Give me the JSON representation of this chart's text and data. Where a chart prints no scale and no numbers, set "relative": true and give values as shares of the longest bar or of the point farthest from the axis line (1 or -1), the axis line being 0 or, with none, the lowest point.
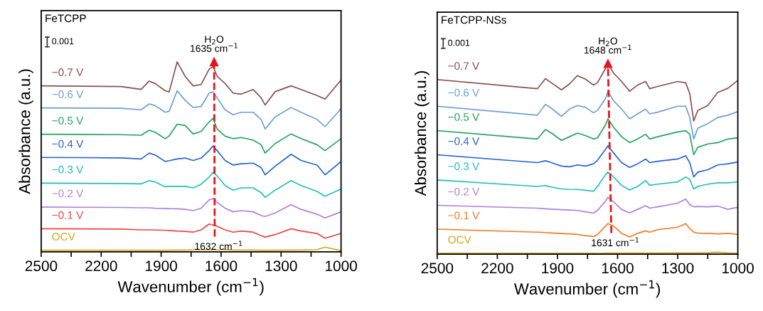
{
  "chart_data": [
    {
      "type": "line",
      "title": "FeTCPP",
      "xlabel": "Wavenumber (cm$^{−1}$)",
      "ylabel": "Absorbance (a.u.)",
      "relative": true,
      "tick_labels": "x",
      "legend": false,
      "grid": false,
      "marker": "none",
      "line_style": "solid",
      "xlim": [
        2500,
        1000
      ],
      "xticks": [
        2500,
        {
          "value": 2350,
          "label": null
        },
        2200,
        {
          "value": 2050,
          "label": null
        },
        1900,
        {
          "value": 1750,
          "label": null
        },
        1600,
        {
          "value": 1450,
          "label": null
        },
        1300,
        {
          "value": 1150,
          "label": null
        },
        1000
      ],
      "annotations": [
        "0.001",
        "H$_{2}$O\n1635 cm$^{−1}$",
        "1632 cm$^{−1}$"
      ],
      "x": [
        2500,
        2300,
        2100,
        2000,
        1960,
        1930,
        1880,
        1860,
        1820,
        1780,
        1740,
        1700,
        1660,
        1640,
        1620,
        1580,
        1540,
        1500,
        1440,
        1400,
        1380,
        1330,
        1250,
        1200,
        1120,
        1080,
        1000
      ],
      "series": [
        {
          "name": "−0.7 V",
          "color": "#8b4e52",
          "values": [
            0.874,
            0.872,
            0.87,
            0.855,
            0.899,
            0.886,
            0.848,
            0.842,
            1.0,
            0.924,
            0.874,
            0.881,
            0.962,
            0.975,
            0.924,
            0.886,
            0.836,
            0.83,
            0.855,
            0.811,
            0.773,
            0.843,
            0.874,
            0.855,
            0.823,
            0.804,
            0.905
          ]
        },
        {
          "name": "−0.6 V",
          "color": "#6b9fd6",
          "values": [
            0.758,
            0.757,
            0.756,
            0.748,
            0.779,
            0.77,
            0.735,
            0.74,
            0.848,
            0.798,
            0.76,
            0.765,
            0.836,
            0.842,
            0.811,
            0.748,
            0.722,
            0.735,
            0.735,
            0.697,
            0.647,
            0.71,
            0.76,
            0.735,
            0.697,
            0.659,
            0.754
          ]
        },
        {
          "name": "−0.5 V",
          "color": "#22a45c",
          "values": [
            0.619,
            0.618,
            0.617,
            0.614,
            0.64,
            0.63,
            0.596,
            0.61,
            0.672,
            0.665,
            0.621,
            0.634,
            0.684,
            0.703,
            0.646,
            0.609,
            0.596,
            0.602,
            0.589,
            0.564,
            0.52,
            0.57,
            0.621,
            0.596,
            0.564,
            0.533,
            0.596
          ]
        },
        {
          "name": "−0.4 V",
          "color": "#2464d4",
          "values": [
            0.497,
            0.496,
            0.495,
            0.489,
            0.52,
            0.51,
            0.476,
            0.48,
            0.489,
            0.494,
            0.481,
            0.494,
            0.533,
            0.558,
            0.533,
            0.481,
            0.457,
            0.464,
            0.467,
            0.444,
            0.406,
            0.451,
            0.514,
            0.481,
            0.457,
            0.406,
            0.476
          ]
        },
        {
          "name": "−0.3 V",
          "color": "#1fbfbf",
          "values": [
            0.362,
            0.361,
            0.36,
            0.358,
            0.375,
            0.368,
            0.343,
            0.345,
            0.345,
            0.345,
            0.337,
            0.356,
            0.394,
            0.419,
            0.4,
            0.349,
            0.325,
            0.337,
            0.337,
            0.312,
            0.287,
            0.325,
            0.375,
            0.349,
            0.318,
            0.293,
            0.331
          ]
        },
        {
          "name": "−0.2 V",
          "color": "#b07fe0",
          "values": [
            0.236,
            0.235,
            0.234,
            0.232,
            0.232,
            0.23,
            0.229,
            0.228,
            0.227,
            0.224,
            0.217,
            0.23,
            0.274,
            0.28,
            0.261,
            0.23,
            0.211,
            0.217,
            0.211,
            0.192,
            0.186,
            0.205,
            0.249,
            0.224,
            0.198,
            0.179,
            0.211
          ]
        },
        {
          "name": "−0.1 V",
          "color": "#ee4444",
          "values": [
            0.122,
            0.121,
            0.12,
            0.116,
            0.116,
            0.115,
            0.114,
            0.113,
            0.11,
            0.108,
            0.104,
            0.116,
            0.147,
            0.141,
            0.135,
            0.116,
            0.104,
            0.11,
            0.104,
            0.085,
            0.078,
            0.091,
            0.122,
            0.11,
            0.097,
            0.072,
            0.097
          ]
        },
        {
          "name": "OCV",
          "color": "#d4a51a",
          "values": [
            0.009,
            0.009,
            0.009,
            0.009,
            0.009,
            0.009,
            0.009,
            0.009,
            0.01,
            0.01,
            0.011,
            0.011,
            0.011,
            0.012,
            0.011,
            0.011,
            0.01,
            0.01,
            0.01,
            0.009,
            0.009,
            0.009,
            0.01,
            0.01,
            0.012,
            0.025,
            0.006
          ]
        },
        {
          "color": "#e8141b",
          "line_style": "dashed",
          "marker": "triangle",
          "x": [
            1632,
            1635
          ],
          "values": [
            0.08,
            1.0
          ]
        }
      ]
    },
    {
      "type": "line",
      "title": "FeTCPP-NSs",
      "xlabel": "Wavenumber (cm$^{−1}$)",
      "ylabel": "Absorbance (a.u.)",
      "relative": true,
      "tick_labels": "x",
      "legend": false,
      "grid": false,
      "marker": "none",
      "line_style": "solid",
      "xlim": [
        2500,
        1000
      ],
      "xticks": [
        2500,
        {
          "value": 2350,
          "label": null
        },
        2200,
        {
          "value": 2050,
          "label": null
        },
        1900,
        {
          "value": 1750,
          "label": null
        },
        1600,
        {
          "value": 1450,
          "label": null
        },
        1300,
        {
          "value": 1150,
          "label": null
        },
        1000
      ],
      "annotations": [
        "0.001",
        "H$_{2}$O\n1648 cm$^{−1}$",
        "1631 cm$^{−1}$"
      ],
      "x": [
        2500,
        2000,
        1960,
        1930,
        1880,
        1840,
        1800,
        1760,
        1720,
        1700,
        1660,
        1648,
        1620,
        1580,
        1540,
        1500,
        1460,
        1440,
        1400,
        1300,
        1260,
        1240,
        1220,
        1200,
        1150,
        1100,
        1050,
        1000
      ],
      "series": [
        {
          "name": "−0.7 V",
          "color": "#8b4e52",
          "values": [
            0.916,
            0.868,
            0.921,
            0.899,
            0.862,
            0.893,
            0.937,
            0.918,
            0.887,
            0.9,
            0.975,
            1.0,
            0.95,
            0.906,
            0.855,
            0.887,
            0.906,
            0.868,
            0.88,
            0.906,
            0.899,
            0.843,
            0.698,
            0.754,
            0.78,
            0.849,
            0.87,
            0.912
          ]
        },
        {
          "name": "−0.6 V",
          "color": "#6b9fd6",
          "values": [
            0.776,
            0.729,
            0.786,
            0.765,
            0.723,
            0.761,
            0.78,
            0.77,
            0.742,
            0.755,
            0.817,
            0.855,
            0.805,
            0.761,
            0.71,
            0.736,
            0.761,
            0.736,
            0.745,
            0.776,
            0.776,
            0.717,
            0.604,
            0.66,
            0.685,
            0.717,
            0.729,
            0.748
          ]
        },
        {
          "name": "−0.5 V",
          "color": "#22a45c",
          "values": [
            0.648,
            0.604,
            0.654,
            0.635,
            0.597,
            0.616,
            0.635,
            0.622,
            0.604,
            0.61,
            0.679,
            0.71,
            0.666,
            0.616,
            0.585,
            0.604,
            0.629,
            0.604,
            0.616,
            0.641,
            0.648,
            0.629,
            0.522,
            0.56,
            0.578,
            0.585,
            0.604,
            0.61
          ]
        },
        {
          "name": "−0.4 V",
          "color": "#2464d4",
          "values": [
            0.521,
            0.48,
            0.49,
            0.48,
            0.462,
            0.458,
            0.468,
            0.462,
            0.474,
            0.493,
            0.55,
            0.568,
            0.531,
            0.48,
            0.455,
            0.474,
            0.499,
            0.48,
            0.487,
            0.499,
            0.516,
            0.48,
            0.405,
            0.43,
            0.443,
            0.468,
            0.474,
            0.483
          ]
        },
        {
          "name": "−0.3 V",
          "color": "#1fbfbf",
          "values": [
            0.389,
            0.355,
            0.36,
            0.352,
            0.342,
            0.34,
            0.339,
            0.335,
            0.33,
            0.355,
            0.418,
            0.43,
            0.405,
            0.361,
            0.336,
            0.355,
            0.386,
            0.361,
            0.367,
            0.379,
            0.405,
            0.392,
            0.342,
            0.355,
            0.367,
            0.374,
            0.374,
            0.379
          ]
        },
        {
          "name": "−0.2 V",
          "color": "#b07fe0",
          "values": [
            0.256,
            0.241,
            0.238,
            0.236,
            0.233,
            0.231,
            0.229,
            0.222,
            0.215,
            0.229,
            0.279,
            0.298,
            0.273,
            0.235,
            0.216,
            0.235,
            0.254,
            0.241,
            0.248,
            0.267,
            0.289,
            0.26,
            0.248,
            0.25,
            0.248,
            0.252,
            0.235,
            0.246
          ]
        },
        {
          "name": "−0.1 V",
          "color": "#f07a22",
          "values": [
            0.131,
            0.115,
            0.113,
            0.111,
            0.108,
            0.106,
            0.103,
            0.097,
            0.092,
            0.103,
            0.147,
            0.16,
            0.147,
            0.109,
            0.09,
            0.109,
            0.122,
            0.115,
            0.128,
            0.141,
            0.16,
            0.134,
            0.115,
            0.11,
            0.109,
            0.106,
            0.109,
            0.103
          ]
        },
        {
          "name": "OCV",
          "color": "#d4a51a",
          "values": [
            0.004,
            0.004,
            0.004,
            0.004,
            0.004,
            0.004,
            0.004,
            0.004,
            0.004,
            0.004,
            0.005,
            0.005,
            0.005,
            0.005,
            0.005,
            0.005,
            0.005,
            0.005,
            0.005,
            0.006,
            0.006,
            0.006,
            0.006,
            0.006,
            0.007,
            0.01,
            0.006,
            0.004
          ]
        },
        {
          "color": "#e8141b",
          "line_style": "dashed",
          "marker": "triangle",
          "x": [
            1631,
            1648
          ],
          "values": [
            0.11,
            1.0
          ]
        }
      ]
    }
  ]
}
